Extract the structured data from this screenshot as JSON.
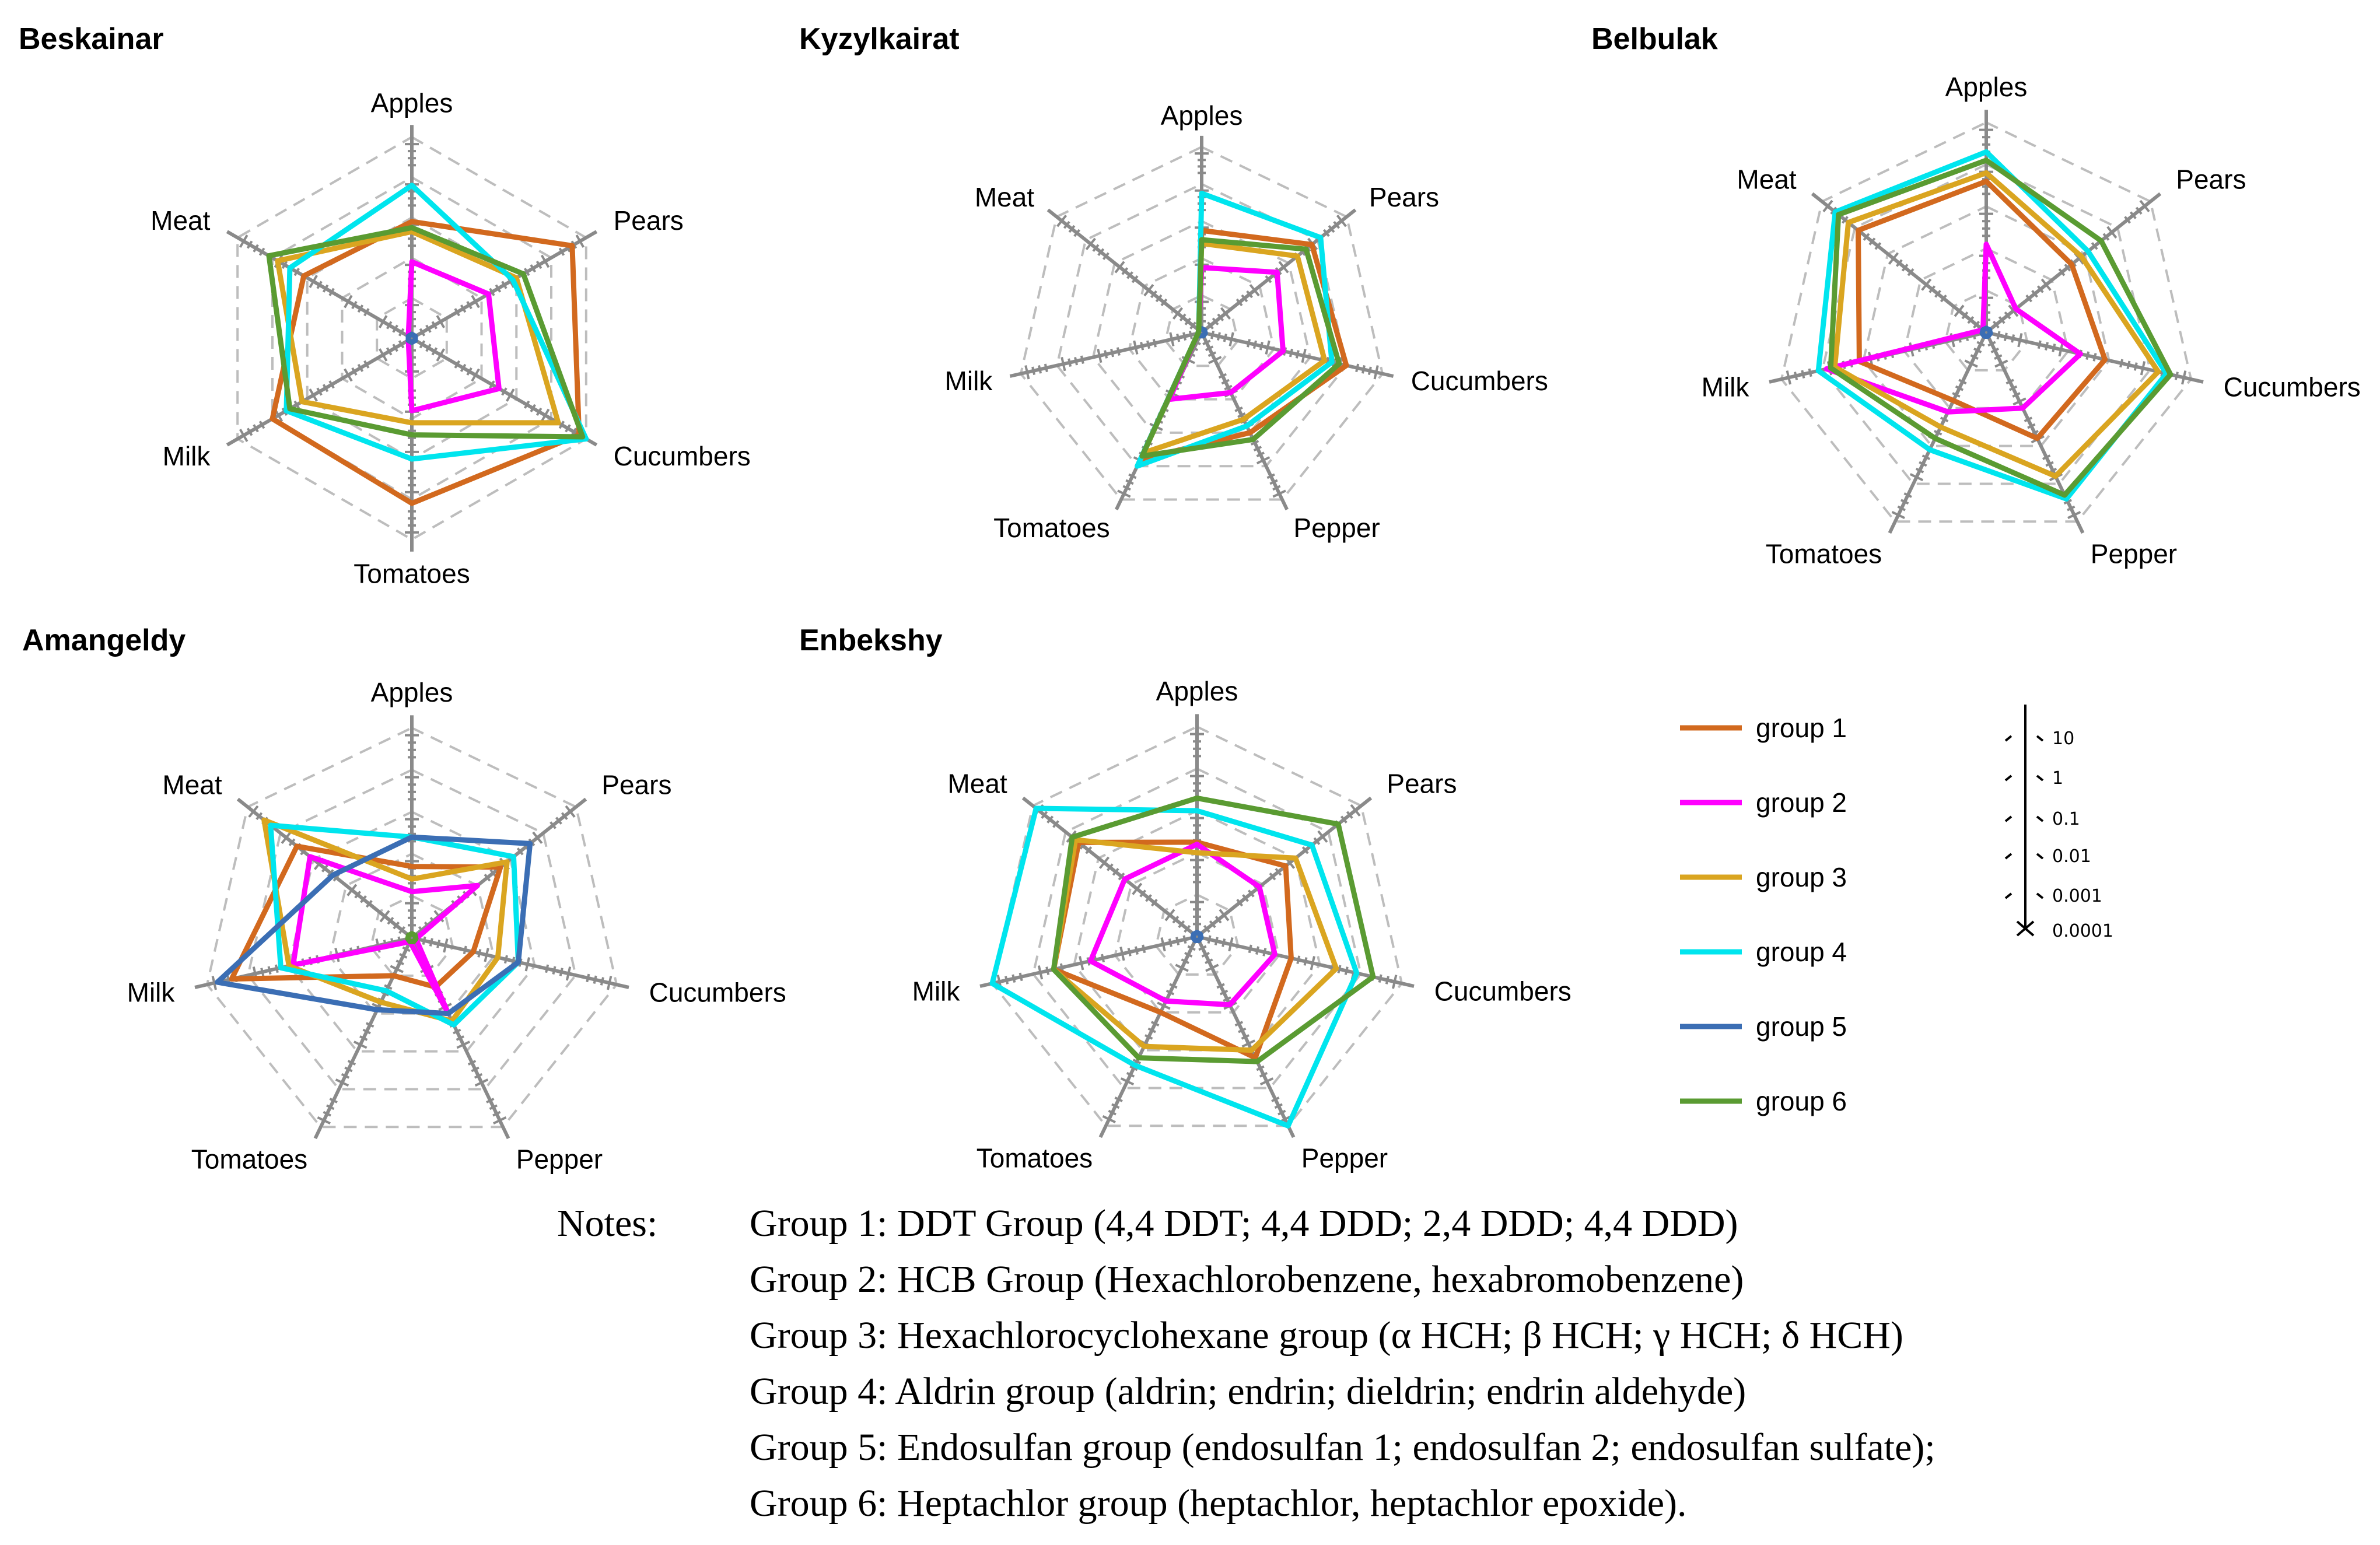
{
  "chart_data": {
    "type": "radar",
    "scale": "log",
    "scale_ticks": [
      "10",
      "1",
      "0.1",
      "0.01",
      "0.001",
      "0.0001"
    ],
    "legend": [
      {
        "name": "group 1",
        "color": "#d2691e"
      },
      {
        "name": "group 2",
        "color": "#ff00ff"
      },
      {
        "name": "group 3",
        "color": "#daa520"
      },
      {
        "name": "group 4",
        "color": "#00e5ee"
      },
      {
        "name": "group 5",
        "color": "#3b6eb4"
      },
      {
        "name": "group 6",
        "color": "#5a9b32"
      }
    ],
    "charts": [
      {
        "title": "Beskainar",
        "categories": [
          "Apples",
          "Pears",
          "Cucumbers",
          "Tomatoes",
          "Milk",
          "Meat"
        ],
        "series": [
          {
            "name": "group 1",
            "values": [
              0.58,
              0.92,
              0.96,
              0.82,
              0.8,
              0.62
            ]
          },
          {
            "name": "group 2",
            "values": [
              0.38,
              0.44,
              0.5,
              0.36,
              0.02,
              0.02
            ]
          },
          {
            "name": "group 3",
            "values": [
              0.53,
              0.6,
              0.84,
              0.42,
              0.63,
              0.77
            ]
          },
          {
            "name": "group 4",
            "values": [
              0.76,
              0.58,
              1.0,
              0.6,
              0.72,
              0.7
            ]
          },
          {
            "name": "group 5",
            "values": [
              0.02,
              0.02,
              0.02,
              0.02,
              0.02,
              0.02
            ]
          },
          {
            "name": "group 6",
            "values": [
              0.55,
              0.64,
              0.98,
              0.48,
              0.7,
              0.82
            ]
          }
        ]
      },
      {
        "title": "Kyzylkairat",
        "categories": [
          "Apples",
          "Pears",
          "Cucumbers",
          "Pepper",
          "Tomatoes",
          "Milk",
          "Meat"
        ],
        "series": [
          {
            "name": "group 1",
            "values": [
              0.55,
              0.76,
              0.8,
              0.6,
              0.76,
              0.02,
              0.02
            ]
          },
          {
            "name": "group 2",
            "values": [
              0.35,
              0.52,
              0.45,
              0.36,
              0.4,
              0.02,
              0.02
            ]
          },
          {
            "name": "group 3",
            "values": [
              0.48,
              0.66,
              0.68,
              0.52,
              0.72,
              0.02,
              0.02
            ]
          },
          {
            "name": "group 4",
            "values": [
              0.75,
              0.82,
              0.72,
              0.56,
              0.8,
              0.02,
              0.02
            ]
          },
          {
            "name": "group 5",
            "values": [
              0.02,
              0.02,
              0.02,
              0.02,
              0.02,
              0.02,
              0.02
            ]
          },
          {
            "name": "group 6",
            "values": [
              0.5,
              0.72,
              0.76,
              0.64,
              0.74,
              0.02,
              0.02
            ]
          }
        ]
      },
      {
        "title": "Belbulak",
        "categories": [
          "Apples",
          "Pears",
          "Cucumbers",
          "Pepper",
          "Tomatoes",
          "Milk",
          "Meat"
        ],
        "series": [
          {
            "name": "group 1",
            "values": [
              0.72,
              0.52,
              0.58,
              0.56,
              0.36,
              0.62,
              0.78
            ]
          },
          {
            "name": "group 2",
            "values": [
              0.42,
              0.18,
              0.46,
              0.4,
              0.42,
              0.78,
              0.02
            ]
          },
          {
            "name": "group 3",
            "values": [
              0.76,
              0.58,
              0.84,
              0.76,
              0.5,
              0.74,
              0.84
            ]
          },
          {
            "name": "group 4",
            "values": [
              0.86,
              0.62,
              0.88,
              0.88,
              0.62,
              0.82,
              0.92
            ]
          },
          {
            "name": "group 5",
            "values": [
              0.02,
              0.02,
              0.02,
              0.02,
              0.02,
              0.02,
              0.02
            ]
          },
          {
            "name": "group 6",
            "values": [
              0.82,
              0.7,
              0.9,
              0.86,
              0.56,
              0.76,
              0.9
            ]
          }
        ]
      },
      {
        "title": "Amangeldy",
        "categories": [
          "Apples",
          "Pears",
          "Cucumbers",
          "Pepper",
          "Tomatoes",
          "Milk",
          "Meat"
        ],
        "series": [
          {
            "name": "group 1",
            "values": [
              0.34,
              0.54,
              0.3,
              0.26,
              0.2,
              0.88,
              0.7
            ]
          },
          {
            "name": "group 2",
            "values": [
              0.22,
              0.4,
              0.02,
              0.4,
              0.02,
              0.58,
              0.62
            ]
          },
          {
            "name": "group 3",
            "values": [
              0.28,
              0.58,
              0.42,
              0.44,
              0.34,
              0.6,
              0.9
            ]
          },
          {
            "name": "group 4",
            "values": [
              0.48,
              0.62,
              0.52,
              0.46,
              0.28,
              0.64,
              0.86
            ]
          },
          {
            "name": "group 5",
            "values": [
              0.48,
              0.72,
              0.52,
              0.4,
              0.38,
              0.95,
              0.48
            ]
          },
          {
            "name": "group 6",
            "values": [
              0.02,
              0.02,
              0.02,
              0.02,
              0.02,
              0.02,
              0.02
            ]
          }
        ]
      },
      {
        "title": "Enbekshy",
        "categories": [
          "Apples",
          "Pears",
          "Cucumbers",
          "Pepper",
          "Tomatoes",
          "Milk",
          "Meat"
        ],
        "series": [
          {
            "name": "group 1",
            "values": [
              0.45,
              0.54,
              0.46,
              0.64,
              0.4,
              0.7,
              0.72
            ]
          },
          {
            "name": "group 2",
            "values": [
              0.44,
              0.38,
              0.38,
              0.36,
              0.34,
              0.52,
              0.44
            ]
          },
          {
            "name": "group 3",
            "values": [
              0.4,
              0.6,
              0.68,
              0.6,
              0.58,
              0.7,
              0.74
            ]
          },
          {
            "name": "group 4",
            "values": [
              0.6,
              0.7,
              0.78,
              1.0,
              0.68,
              1.0,
              0.98
            ]
          },
          {
            "name": "group 5",
            "values": [
              0.02,
              0.02,
              0.02,
              0.02,
              0.02,
              0.02,
              0.02
            ]
          },
          {
            "name": "group 6",
            "values": [
              0.66,
              0.86,
              0.86,
              0.66,
              0.64,
              0.7,
              0.76
            ]
          }
        ]
      }
    ]
  },
  "notes": {
    "header": "Notes:",
    "lines": [
      "Group 1: DDT Group (4,4 DDT; 4,4 DDD; 2,4 DDD; 4,4 DDD)",
      "Group 2: HCB Group (Hexachlorobenzene, hexabromobenzene)",
      "Group 3: Hexachlorocyclohexane group (α HCH; β HCH; γ HCH; δ HCH)",
      "Group 4: Aldrin group (aldrin; endrin; dieldrin; endrin aldehyde)",
      "Group 5: Endosulfan group (endosulfan 1; endosulfan 2; endosulfan sulfate);",
      "Group 6: Heptachlor group (heptachlor, heptachlor epoxide)."
    ]
  }
}
